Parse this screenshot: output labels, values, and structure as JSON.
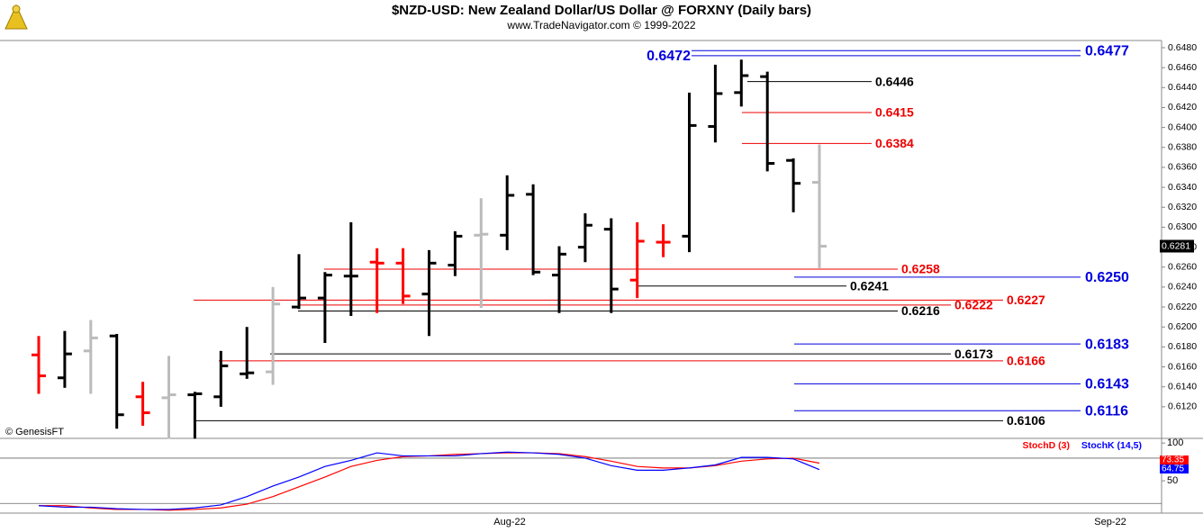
{
  "chart_data": [
    {
      "type": "ohlc",
      "title": "$NZD-USD:  New Zealand Dollar/US Dollar @ FORXNY  (Daily bars)",
      "subtitle": "www.TradeNavigator.com © 1999-2022",
      "source": "© GenesisFT",
      "open": [
        0.6172,
        0.6149,
        0.6176,
        0.6191,
        0.613,
        0.6129,
        0.6132,
        0.613,
        0.6153,
        0.6155,
        0.622,
        0.6229,
        0.6251,
        0.6265,
        0.6264,
        0.6233,
        0.6262,
        0.6292,
        0.6292,
        0.6333,
        0.6252,
        0.628,
        0.6298,
        0.6247,
        0.6285,
        0.6291,
        0.6401,
        0.6435,
        0.6451,
        0.6367,
        0.6345
      ],
      "high": [
        0.6191,
        0.6196,
        0.6207,
        0.6193,
        0.6145,
        0.6171,
        0.6135,
        0.6176,
        0.62,
        0.624,
        0.6273,
        0.6255,
        0.6305,
        0.6279,
        0.6279,
        0.6277,
        0.6296,
        0.6329,
        0.6352,
        0.6343,
        0.6281,
        0.6314,
        0.6309,
        0.6305,
        0.6303,
        0.6435,
        0.6463,
        0.6468,
        0.6456,
        0.6369,
        0.6383
      ],
      "low": [
        0.6133,
        0.6139,
        0.6133,
        0.6098,
        0.6101,
        0.6088,
        0.6088,
        0.612,
        0.6148,
        0.6142,
        0.6218,
        0.6184,
        0.6211,
        0.6214,
        0.6223,
        0.6191,
        0.6251,
        0.6219,
        0.6277,
        0.6252,
        0.6214,
        0.6265,
        0.6214,
        0.6229,
        0.627,
        0.6275,
        0.6385,
        0.6421,
        0.6356,
        0.6315,
        0.6259
      ],
      "close": [
        0.6151,
        0.6173,
        0.6189,
        0.6112,
        0.6114,
        0.6132,
        0.6133,
        0.6161,
        0.6154,
        0.6223,
        0.6229,
        0.6252,
        0.6251,
        0.6264,
        0.6231,
        0.6264,
        0.6291,
        0.6293,
        0.6332,
        0.6255,
        0.6273,
        0.6302,
        0.6238,
        0.6286,
        0.6285,
        0.6402,
        0.6434,
        0.6452,
        0.6364,
        0.6344,
        0.6281
      ],
      "bar_colors": [
        "#ff0000",
        "#000000",
        "#bbbbbb",
        "#000000",
        "#ff0000",
        "#bbbbbb",
        "#000000",
        "#000000",
        "#000000",
        "#bbbbbb",
        "#000000",
        "#000000",
        "#000000",
        "#ff0000",
        "#ff0000",
        "#000000",
        "#000000",
        "#bbbbbb",
        "#000000",
        "#000000",
        "#000000",
        "#000000",
        "#000000",
        "#ff0000",
        "#ff0000",
        "#000000",
        "#000000",
        "#000000",
        "#000000",
        "#000000",
        "#bbbbbb"
      ],
      "ylim": [
        0.60883,
        0.64872
      ],
      "yticks": [
        {
          "value": 0.612,
          "label": "0.6120"
        },
        {
          "value": 0.614,
          "label": "0.6140"
        },
        {
          "value": 0.616,
          "label": "0.6160"
        },
        {
          "value": 0.618,
          "label": "0.6180"
        },
        {
          "value": 0.62,
          "label": "0.6200"
        },
        {
          "value": 0.622,
          "label": "0.6220"
        },
        {
          "value": 0.624,
          "label": "0.6240"
        },
        {
          "value": 0.626,
          "label": "0.6260"
        },
        {
          "value": 0.628,
          "label": "0.6280"
        },
        {
          "value": 0.63,
          "label": "0.6300"
        },
        {
          "value": 0.632,
          "label": "0.6320"
        },
        {
          "value": 0.634,
          "label": "0.6340"
        },
        {
          "value": 0.636,
          "label": "0.6360"
        },
        {
          "value": 0.638,
          "label": "0.6380"
        },
        {
          "value": 0.64,
          "label": "0.6400"
        },
        {
          "value": 0.642,
          "label": "0.6420"
        },
        {
          "value": 0.644,
          "label": "0.6440"
        },
        {
          "value": 0.646,
          "label": "0.6460"
        },
        {
          "value": 0.648,
          "label": "0.6480"
        }
      ],
      "levels": [
        {
          "value": 0.6477,
          "label": "0.6477",
          "color": "#0000dd"
        },
        {
          "value": 0.6472,
          "label": "0.6472",
          "color": "#0000dd"
        },
        {
          "value": 0.6446,
          "label": "0.6446",
          "color": "#000000"
        },
        {
          "value": 0.6415,
          "label": "0.6415",
          "color": "#ee0000"
        },
        {
          "value": 0.6384,
          "label": "0.6384",
          "color": "#ee0000"
        },
        {
          "value": 0.6258,
          "label": "0.6258",
          "color": "#ee0000"
        },
        {
          "value": 0.625,
          "label": "0.6250",
          "color": "#0000dd"
        },
        {
          "value": 0.6241,
          "label": "0.6241",
          "color": "#000000"
        },
        {
          "value": 0.6227,
          "label": "0.6227",
          "color": "#ee0000"
        },
        {
          "value": 0.6222,
          "label": "0.6222",
          "color": "#ee0000"
        },
        {
          "value": 0.6216,
          "label": "0.6216",
          "color": "#000000"
        },
        {
          "value": 0.6183,
          "label": "0.6183",
          "color": "#0000dd"
        },
        {
          "value": 0.6173,
          "label": "0.6173",
          "color": "#000000"
        },
        {
          "value": 0.6166,
          "label": "0.6166",
          "color": "#ee0000"
        },
        {
          "value": 0.6143,
          "label": "0.6143",
          "color": "#0000dd"
        },
        {
          "value": 0.6116,
          "label": "0.6116",
          "color": "#0000dd"
        },
        {
          "value": 0.6106,
          "label": "0.6106",
          "color": "#000000"
        }
      ],
      "x_labels": [
        "Aug-22",
        "Sep-22"
      ]
    },
    {
      "type": "line",
      "series": [
        {
          "name": "StochD (3)",
          "color": "#ff0000",
          "values": [
            17,
            17,
            14,
            12,
            12,
            11,
            12,
            14,
            19,
            29,
            42,
            55,
            69,
            77,
            82,
            83,
            85,
            86,
            87,
            87,
            86,
            82,
            76,
            69,
            67,
            67,
            70,
            76,
            79,
            80,
            73.35
          ]
        },
        {
          "name": "StochK (14,5)",
          "color": "#0000ff",
          "values": [
            17,
            15,
            15,
            13,
            12,
            12,
            14,
            18,
            29,
            43,
            55,
            69,
            77,
            87,
            83,
            83,
            83,
            86,
            88,
            87,
            85,
            80,
            70,
            64,
            64,
            67,
            71,
            81,
            81,
            79,
            64.75
          ]
        }
      ],
      "ylim": [
        0,
        105
      ],
      "yticks": [
        50,
        100
      ],
      "reference_lines": [
        20,
        80
      ]
    }
  ]
}
